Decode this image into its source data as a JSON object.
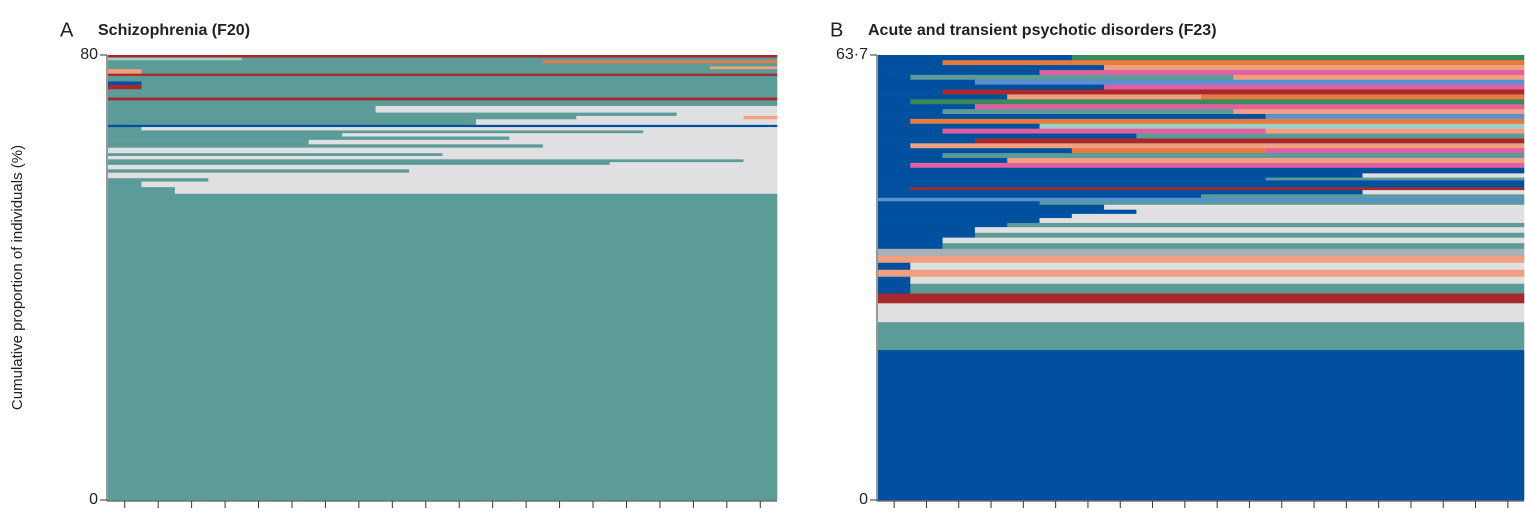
{
  "chart_data": [
    {
      "type": "sequence",
      "letter": "A",
      "title": "Schizophrenia (F20)",
      "ylabel": "Cumulative proportion of individuals (%)",
      "ylim": [
        0,
        80
      ],
      "yticks": [
        0,
        80
      ],
      "xlim": [
        0.5,
        20.5
      ],
      "xticks": [
        1,
        2,
        3,
        4,
        5,
        6,
        7,
        8,
        9,
        10,
        11,
        12,
        13,
        14,
        15,
        16,
        17,
        18,
        19,
        20
      ],
      "state_colors": [
        "#5b9b98",
        "#e0e0e2",
        "#0050a0",
        "#a8282c",
        "#f0a080",
        "#e87a40",
        "#5890d0",
        "#e060a0",
        "#9fd0c8",
        "#a8b0b8",
        "#3a8a5a"
      ],
      "sequences": [
        {
          "share": 55.1,
          "runs": [
            [
              0,
              20
            ]
          ]
        },
        {
          "share": 1.2,
          "runs": [
            [
              0,
              2
            ],
            [
              1,
              18
            ]
          ]
        },
        {
          "share": 1.0,
          "runs": [
            [
              0,
              1
            ],
            [
              1,
              19
            ]
          ]
        },
        {
          "share": 0.6,
          "runs": [
            [
              0,
              3
            ],
            [
              1,
              17
            ]
          ]
        },
        {
          "share": 1.0,
          "runs": [
            [
              1,
              20
            ]
          ]
        },
        {
          "share": 0.6,
          "runs": [
            [
              0,
              9
            ],
            [
              1,
              11
            ]
          ]
        },
        {
          "share": 0.8,
          "runs": [
            [
              1,
              20
            ]
          ]
        },
        {
          "share": 0.5,
          "runs": [
            [
              0,
              15
            ],
            [
              1,
              5
            ]
          ]
        },
        {
          "share": 0.5,
          "runs": [
            [
              0,
              19
            ],
            [
              1,
              1
            ]
          ]
        },
        {
          "share": 0.6,
          "runs": [
            [
              1,
              20
            ]
          ]
        },
        {
          "share": 0.5,
          "runs": [
            [
              0,
              10
            ],
            [
              1,
              10
            ]
          ]
        },
        {
          "share": 1.0,
          "runs": [
            [
              1,
              20
            ]
          ]
        },
        {
          "share": 0.6,
          "runs": [
            [
              0,
              13
            ],
            [
              1,
              7
            ]
          ]
        },
        {
          "share": 0.8,
          "runs": [
            [
              0,
              6
            ],
            [
              1,
              14
            ]
          ]
        },
        {
          "share": 0.6,
          "runs": [
            [
              0,
              12
            ],
            [
              1,
              8
            ]
          ]
        },
        {
          "share": 0.6,
          "runs": [
            [
              0,
              7
            ],
            [
              1,
              13
            ]
          ]
        },
        {
          "share": 0.5,
          "runs": [
            [
              0,
              16
            ],
            [
              1,
              4
            ]
          ]
        },
        {
          "share": 0.6,
          "runs": [
            [
              0,
              1
            ],
            [
              1,
              19
            ]
          ]
        },
        {
          "share": 0.4,
          "runs": [
            [
              2,
              20
            ]
          ]
        },
        {
          "share": 1.0,
          "runs": [
            [
              0,
              11
            ],
            [
              1,
              9
            ]
          ]
        },
        {
          "share": 0.6,
          "runs": [
            [
              0,
              14
            ],
            [
              1,
              5
            ],
            [
              4,
              1
            ]
          ]
        },
        {
          "share": 0.6,
          "runs": [
            [
              0,
              17
            ],
            [
              1,
              3
            ]
          ]
        },
        {
          "share": 1.2,
          "runs": [
            [
              0,
              8
            ],
            [
              1,
              12
            ]
          ]
        },
        {
          "share": 1.0,
          "runs": [
            [
              0,
              20
            ]
          ]
        },
        {
          "share": 0.5,
          "runs": [
            [
              3,
              20
            ]
          ]
        },
        {
          "share": 1.5,
          "runs": [
            [
              0,
              20
            ]
          ]
        },
        {
          "share": 0.8,
          "runs": [
            [
              3,
              1
            ],
            [
              0,
              19
            ]
          ]
        },
        {
          "share": 0.6,
          "runs": [
            [
              2,
              1
            ],
            [
              0,
              19
            ]
          ]
        },
        {
          "share": 1.0,
          "runs": [
            [
              0,
              20
            ]
          ]
        },
        {
          "share": 0.4,
          "runs": [
            [
              3,
              20
            ]
          ]
        },
        {
          "share": 0.8,
          "runs": [
            [
              4,
              1
            ],
            [
              0,
              19
            ]
          ]
        },
        {
          "share": 0.5,
          "runs": [
            [
              0,
              18
            ],
            [
              4,
              2
            ]
          ]
        },
        {
          "share": 0.6,
          "runs": [
            [
              0,
              20
            ]
          ]
        },
        {
          "share": 0.5,
          "runs": [
            [
              0,
              13
            ],
            [
              5,
              7
            ]
          ]
        },
        {
          "share": 0.5,
          "runs": [
            [
              8,
              4
            ],
            [
              0,
              16
            ]
          ]
        },
        {
          "share": 0.4,
          "runs": [
            [
              3,
              20
            ]
          ]
        }
      ]
    },
    {
      "type": "sequence",
      "letter": "B",
      "title": "Acute and transient psychotic disorders (F23)",
      "ylim": [
        0,
        63.7
      ],
      "yticks": [
        0,
        {
          "value": 63.7,
          "label": "63·7"
        }
      ],
      "xlim": [
        0.5,
        20.5
      ],
      "xticks": [
        1,
        2,
        3,
        4,
        5,
        6,
        7,
        8,
        9,
        10,
        11,
        12,
        13,
        14,
        15,
        16,
        17,
        18,
        19,
        20
      ],
      "state_colors": [
        "#5b9b98",
        "#e0e0e2",
        "#0050a0",
        "#a8282c",
        "#f0a080",
        "#e87a40",
        "#5890d0",
        "#e060a0",
        "#9fd0c8",
        "#a8b0b8",
        "#3a8a5a"
      ],
      "sequences": [
        {
          "share": 21.5,
          "runs": [
            [
              2,
              20
            ]
          ]
        },
        {
          "share": 4.0,
          "runs": [
            [
              0,
              20
            ]
          ]
        },
        {
          "share": 2.7,
          "runs": [
            [
              1,
              20
            ]
          ]
        },
        {
          "share": 1.4,
          "runs": [
            [
              3,
              20
            ]
          ]
        },
        {
          "share": 1.4,
          "runs": [
            [
              2,
              1
            ],
            [
              0,
              19
            ]
          ]
        },
        {
          "share": 1.0,
          "runs": [
            [
              2,
              1
            ],
            [
              1,
              19
            ]
          ]
        },
        {
          "share": 1.0,
          "runs": [
            [
              4,
              20
            ]
          ]
        },
        {
          "share": 1.0,
          "runs": [
            [
              2,
              1
            ],
            [
              1,
              19
            ]
          ]
        },
        {
          "share": 1.0,
          "runs": [
            [
              4,
              20
            ]
          ]
        },
        {
          "share": 1.0,
          "runs": [
            [
              9,
              20
            ]
          ]
        },
        {
          "share": 0.8,
          "runs": [
            [
              2,
              2
            ],
            [
              0,
              18
            ]
          ]
        },
        {
          "share": 0.8,
          "runs": [
            [
              2,
              2
            ],
            [
              1,
              18
            ]
          ]
        },
        {
          "share": 0.7,
          "runs": [
            [
              2,
              3
            ],
            [
              0,
              17
            ]
          ]
        },
        {
          "share": 0.8,
          "runs": [
            [
              2,
              3
            ],
            [
              1,
              17
            ]
          ]
        },
        {
          "share": 0.6,
          "runs": [
            [
              2,
              4
            ],
            [
              0,
              16
            ]
          ]
        },
        {
          "share": 0.7,
          "runs": [
            [
              2,
              5
            ],
            [
              1,
              15
            ]
          ]
        },
        {
          "share": 0.6,
          "runs": [
            [
              2,
              6
            ],
            [
              1,
              14
            ]
          ]
        },
        {
          "share": 0.6,
          "runs": [
            [
              2,
              8
            ],
            [
              1,
              12
            ]
          ]
        },
        {
          "share": 0.7,
          "runs": [
            [
              2,
              7
            ],
            [
              1,
              13
            ]
          ]
        },
        {
          "share": 0.5,
          "runs": [
            [
              2,
              5
            ],
            [
              0,
              15
            ]
          ]
        },
        {
          "share": 0.5,
          "runs": [
            [
              6,
              20
            ]
          ]
        },
        {
          "share": 0.5,
          "runs": [
            [
              2,
              10
            ],
            [
              0,
              10
            ]
          ]
        },
        {
          "share": 0.6,
          "runs": [
            [
              2,
              15
            ],
            [
              1,
              5
            ]
          ]
        },
        {
          "share": 0.4,
          "runs": [
            [
              2,
              1
            ],
            [
              3,
              19
            ]
          ]
        },
        {
          "share": 1.0,
          "runs": [
            [
              2,
              20
            ]
          ]
        },
        {
          "share": 0.4,
          "runs": [
            [
              2,
              12
            ],
            [
              0,
              8
            ]
          ]
        },
        {
          "share": 0.6,
          "runs": [
            [
              2,
              15
            ],
            [
              1,
              5
            ]
          ]
        },
        {
          "share": 0.8,
          "runs": [
            [
              2,
              20
            ]
          ]
        },
        {
          "share": 0.7,
          "runs": [
            [
              2,
              1
            ],
            [
              7,
              19
            ]
          ]
        },
        {
          "share": 0.7,
          "runs": [
            [
              2,
              4
            ],
            [
              4,
              16
            ]
          ]
        },
        {
          "share": 0.7,
          "runs": [
            [
              2,
              2
            ],
            [
              0,
              18
            ]
          ]
        },
        {
          "share": 0.7,
          "runs": [
            [
              2,
              6
            ],
            [
              5,
              6
            ],
            [
              7,
              8
            ]
          ]
        },
        {
          "share": 0.7,
          "runs": [
            [
              2,
              1
            ],
            [
              4,
              19
            ]
          ]
        },
        {
          "share": 0.7,
          "runs": [
            [
              2,
              3
            ],
            [
              3,
              17
            ]
          ]
        },
        {
          "share": 0.7,
          "runs": [
            [
              2,
              8
            ],
            [
              0,
              12
            ]
          ]
        },
        {
          "share": 0.7,
          "runs": [
            [
              2,
              2
            ],
            [
              7,
              10
            ],
            [
              4,
              8
            ]
          ]
        },
        {
          "share": 0.7,
          "runs": [
            [
              2,
              5
            ],
            [
              8,
              15
            ]
          ]
        },
        {
          "share": 0.7,
          "runs": [
            [
              2,
              1
            ],
            [
              5,
              19
            ]
          ]
        },
        {
          "share": 0.7,
          "runs": [
            [
              2,
              12
            ],
            [
              6,
              8
            ]
          ]
        },
        {
          "share": 0.7,
          "runs": [
            [
              2,
              2
            ],
            [
              0,
              9
            ],
            [
              4,
              9
            ]
          ]
        },
        {
          "share": 0.7,
          "runs": [
            [
              2,
              3
            ],
            [
              7,
              17
            ]
          ]
        },
        {
          "share": 0.7,
          "runs": [
            [
              2,
              1
            ],
            [
              10,
              19
            ]
          ]
        },
        {
          "share": 0.7,
          "runs": [
            [
              2,
              4
            ],
            [
              4,
              6
            ],
            [
              5,
              10
            ]
          ]
        },
        {
          "share": 0.7,
          "runs": [
            [
              2,
              2
            ],
            [
              3,
              18
            ]
          ]
        },
        {
          "share": 0.7,
          "runs": [
            [
              2,
              7
            ],
            [
              7,
              13
            ]
          ]
        },
        {
          "share": 0.7,
          "runs": [
            [
              2,
              3
            ],
            [
              6,
              17
            ]
          ]
        },
        {
          "share": 0.7,
          "runs": [
            [
              2,
              1
            ],
            [
              0,
              10
            ],
            [
              4,
              9
            ]
          ]
        },
        {
          "share": 0.7,
          "runs": [
            [
              2,
              5
            ],
            [
              7,
              15
            ]
          ]
        },
        {
          "share": 0.7,
          "runs": [
            [
              2,
              7
            ],
            [
              4,
              13
            ]
          ]
        },
        {
          "share": 0.7,
          "runs": [
            [
              2,
              2
            ],
            [
              5,
              18
            ]
          ]
        },
        {
          "share": 0.7,
          "runs": [
            [
              2,
              6
            ],
            [
              10,
              14
            ]
          ]
        }
      ]
    }
  ]
}
